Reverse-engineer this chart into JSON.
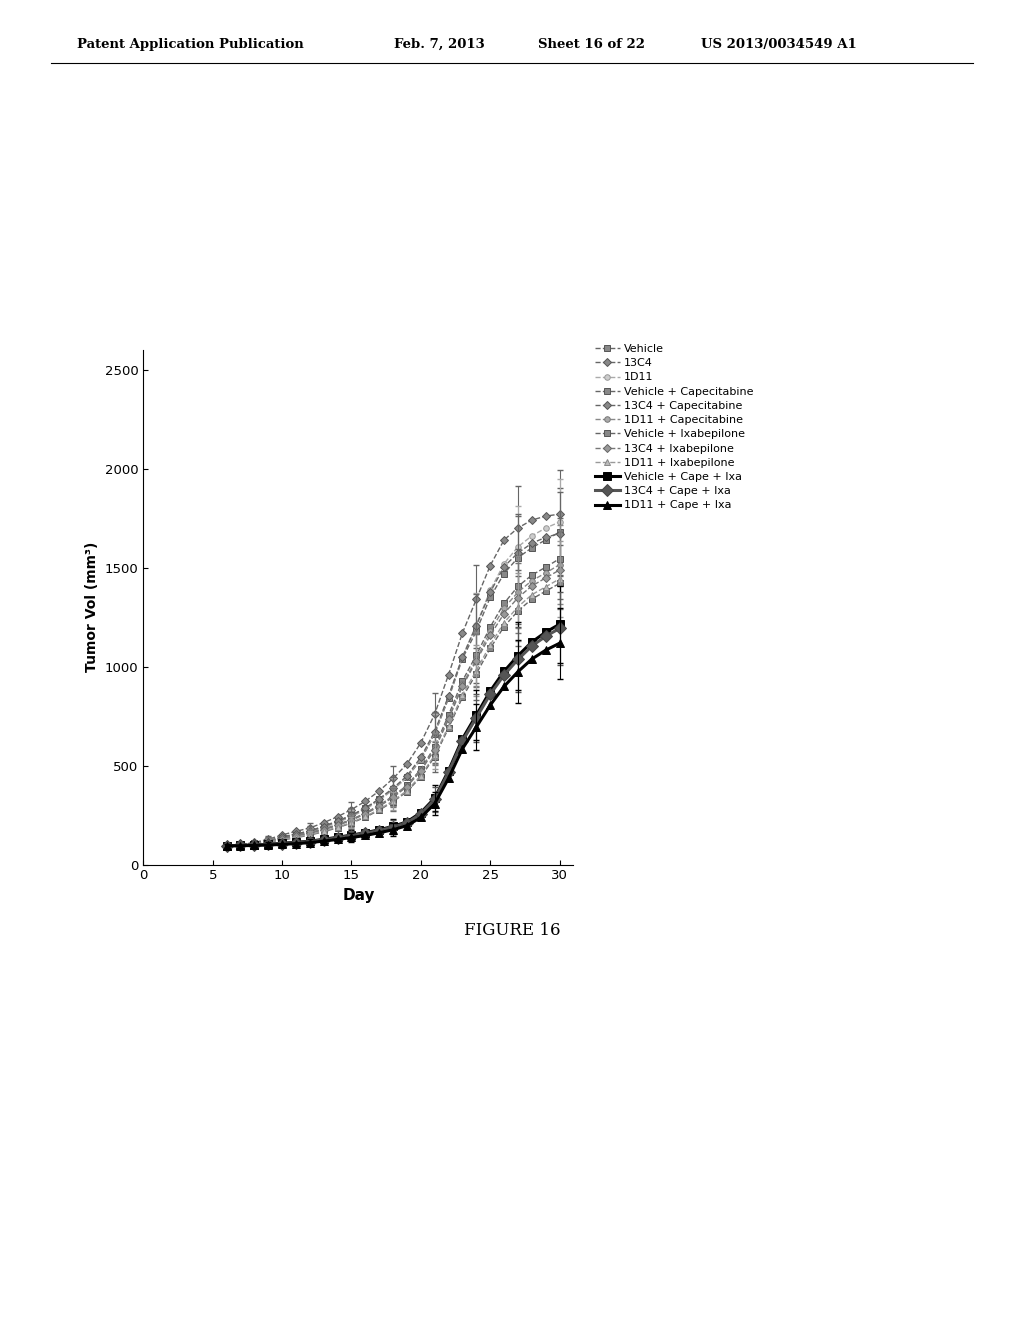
{
  "title": "FIGURE 16",
  "xlabel": "Day",
  "ylabel": "Tumor Vol (mm³)",
  "xlim": [
    0,
    31
  ],
  "ylim": [
    0,
    2600
  ],
  "xticks": [
    0,
    5,
    10,
    15,
    20,
    25,
    30
  ],
  "yticks": [
    0,
    500,
    1000,
    1500,
    2000,
    2500
  ],
  "background_color": "#ffffff",
  "header_left": "Patent Application Publication",
  "header_mid1": "Feb. 7, 2013",
  "header_mid2": "Sheet 16 of 22",
  "header_right": "US 2013/0034549 A1",
  "series": [
    {
      "label": "Vehicle",
      "color": "#666666",
      "linestyle": "--",
      "linewidth": 1.0,
      "marker": "s",
      "markersize": 4,
      "markerfacecolor": "#999999",
      "days": [
        6,
        7,
        8,
        9,
        10,
        11,
        12,
        13,
        14,
        15,
        16,
        17,
        18,
        19,
        20,
        21,
        22,
        23,
        24,
        25,
        26,
        27,
        28,
        29,
        30
      ],
      "values": [
        95,
        100,
        108,
        120,
        140,
        155,
        170,
        195,
        220,
        250,
        285,
        330,
        380,
        440,
        530,
        660,
        840,
        1040,
        1180,
        1350,
        1470,
        1550,
        1600,
        1640,
        1680
      ],
      "errors": [
        10,
        12,
        14,
        16,
        18,
        20,
        22,
        25,
        30,
        35,
        40,
        48,
        55,
        65,
        80,
        95,
        120,
        145,
        165,
        185,
        200,
        210,
        215,
        218,
        222
      ]
    },
    {
      "label": "13C4",
      "color": "#666666",
      "linestyle": "--",
      "linewidth": 1.0,
      "marker": "D",
      "markersize": 4,
      "markerfacecolor": "#999999",
      "days": [
        6,
        7,
        8,
        9,
        10,
        11,
        12,
        13,
        14,
        15,
        16,
        17,
        18,
        19,
        20,
        21,
        22,
        23,
        24,
        25,
        26,
        27,
        28,
        29,
        30
      ],
      "values": [
        95,
        102,
        112,
        128,
        150,
        168,
        185,
        212,
        242,
        278,
        320,
        372,
        435,
        508,
        615,
        760,
        960,
        1170,
        1340,
        1510,
        1640,
        1700,
        1740,
        1760,
        1770
      ],
      "errors": [
        10,
        12,
        14,
        17,
        20,
        22,
        25,
        29,
        34,
        40,
        47,
        55,
        63,
        73,
        88,
        108,
        132,
        155,
        175,
        193,
        206,
        212,
        216,
        219,
        221
      ]
    },
    {
      "label": "1D11",
      "color": "#aaaaaa",
      "linestyle": "--",
      "linewidth": 1.0,
      "marker": "o",
      "markersize": 4,
      "markerfacecolor": "#cccccc",
      "days": [
        6,
        7,
        8,
        9,
        10,
        11,
        12,
        13,
        14,
        15,
        16,
        17,
        18,
        19,
        20,
        21,
        22,
        23,
        24,
        25,
        26,
        27,
        28,
        29,
        30
      ],
      "values": [
        95,
        100,
        108,
        118,
        135,
        150,
        165,
        188,
        212,
        242,
        278,
        325,
        378,
        440,
        535,
        665,
        848,
        1050,
        1210,
        1385,
        1520,
        1605,
        1660,
        1700,
        1730
      ],
      "errors": [
        10,
        12,
        14,
        16,
        18,
        20,
        22,
        25,
        30,
        36,
        42,
        50,
        57,
        66,
        80,
        96,
        118,
        142,
        161,
        180,
        195,
        204,
        209,
        213,
        215
      ]
    },
    {
      "label": "Vehicle + Capecitabine",
      "color": "#666666",
      "linestyle": "--",
      "linewidth": 1.0,
      "marker": "s",
      "markersize": 4,
      "markerfacecolor": "#999999",
      "days": [
        6,
        7,
        8,
        9,
        10,
        11,
        12,
        13,
        14,
        15,
        16,
        17,
        18,
        19,
        20,
        21,
        22,
        23,
        24,
        25,
        26,
        27,
        28,
        29,
        30
      ],
      "values": [
        95,
        100,
        107,
        118,
        133,
        147,
        161,
        180,
        202,
        228,
        260,
        300,
        346,
        400,
        482,
        595,
        755,
        928,
        1058,
        1200,
        1320,
        1405,
        1462,
        1502,
        1545
      ],
      "errors": [
        10,
        12,
        14,
        16,
        17,
        19,
        21,
        24,
        28,
        32,
        37,
        43,
        49,
        57,
        68,
        82,
        102,
        124,
        143,
        162,
        177,
        188,
        196,
        201,
        206
      ]
    },
    {
      "label": "13C4 + Capecitabine",
      "color": "#666666",
      "linestyle": "--",
      "linewidth": 1.0,
      "marker": "D",
      "markersize": 4,
      "markerfacecolor": "#999999",
      "days": [
        6,
        7,
        8,
        9,
        10,
        11,
        12,
        13,
        14,
        15,
        16,
        17,
        18,
        19,
        20,
        21,
        22,
        23,
        24,
        25,
        26,
        27,
        28,
        29,
        30
      ],
      "values": [
        95,
        100,
        109,
        122,
        138,
        154,
        169,
        192,
        218,
        248,
        285,
        332,
        386,
        448,
        542,
        672,
        852,
        1048,
        1207,
        1375,
        1505,
        1574,
        1623,
        1653,
        1672
      ],
      "errors": [
        10,
        12,
        14,
        16,
        18,
        21,
        24,
        27,
        32,
        37,
        43,
        51,
        58,
        67,
        79,
        97,
        119,
        141,
        160,
        178,
        192,
        199,
        204,
        207,
        209
      ]
    },
    {
      "label": "1D11 + Capecitabine",
      "color": "#888888",
      "linestyle": "--",
      "linewidth": 1.0,
      "marker": "o",
      "markersize": 4,
      "markerfacecolor": "#bbbbbb",
      "days": [
        6,
        7,
        8,
        9,
        10,
        11,
        12,
        13,
        14,
        15,
        16,
        17,
        18,
        19,
        20,
        21,
        22,
        23,
        24,
        25,
        26,
        27,
        28,
        29,
        30
      ],
      "values": [
        95,
        100,
        107,
        117,
        131,
        145,
        159,
        178,
        200,
        226,
        258,
        297,
        343,
        397,
        478,
        588,
        742,
        910,
        1038,
        1178,
        1296,
        1376,
        1434,
        1473,
        1515
      ],
      "errors": [
        10,
        12,
        13,
        15,
        17,
        19,
        21,
        23,
        27,
        31,
        36,
        42,
        48,
        55,
        65,
        79,
        98,
        119,
        138,
        157,
        172,
        183,
        190,
        195,
        200
      ]
    },
    {
      "label": "Vehicle + Ixabepilone",
      "color": "#666666",
      "linestyle": "--",
      "linewidth": 1.0,
      "marker": "s",
      "markersize": 4,
      "markerfacecolor": "#999999",
      "days": [
        6,
        7,
        8,
        9,
        10,
        11,
        12,
        13,
        14,
        15,
        16,
        17,
        18,
        19,
        20,
        21,
        22,
        23,
        24,
        25,
        26,
        27,
        28,
        29,
        30
      ],
      "values": [
        95,
        99,
        105,
        112,
        124,
        136,
        149,
        166,
        186,
        210,
        239,
        275,
        318,
        368,
        443,
        545,
        690,
        845,
        964,
        1092,
        1202,
        1281,
        1341,
        1381,
        1420
      ],
      "errors": [
        10,
        11,
        13,
        15,
        16,
        18,
        20,
        23,
        27,
        31,
        36,
        41,
        46,
        53,
        62,
        75,
        93,
        112,
        131,
        150,
        165,
        176,
        184,
        189,
        194
      ]
    },
    {
      "label": "13C4 + Ixabepilone",
      "color": "#777777",
      "linestyle": "--",
      "linewidth": 1.0,
      "marker": "D",
      "markersize": 4,
      "markerfacecolor": "#aaaaaa",
      "days": [
        6,
        7,
        8,
        9,
        10,
        11,
        12,
        13,
        14,
        15,
        16,
        17,
        18,
        19,
        20,
        21,
        22,
        23,
        24,
        25,
        26,
        27,
        28,
        29,
        30
      ],
      "values": [
        95,
        99,
        106,
        117,
        131,
        144,
        158,
        176,
        198,
        224,
        256,
        294,
        340,
        394,
        473,
        581,
        735,
        900,
        1029,
        1158,
        1268,
        1348,
        1407,
        1448,
        1488
      ],
      "errors": [
        10,
        11,
        13,
        15,
        17,
        19,
        21,
        24,
        28,
        32,
        37,
        42,
        48,
        55,
        64,
        77,
        95,
        116,
        134,
        153,
        167,
        177,
        185,
        191,
        196
      ]
    },
    {
      "label": "1D11 + Ixabepilone",
      "color": "#aaaaaa",
      "linestyle": "--",
      "linewidth": 1.0,
      "marker": "^",
      "markersize": 4,
      "markerfacecolor": "#cccccc",
      "days": [
        6,
        7,
        8,
        9,
        10,
        11,
        12,
        13,
        14,
        15,
        16,
        17,
        18,
        19,
        20,
        21,
        22,
        23,
        24,
        25,
        26,
        27,
        28,
        29,
        30
      ],
      "values": [
        95,
        99,
        105,
        113,
        126,
        139,
        151,
        169,
        189,
        213,
        243,
        279,
        322,
        374,
        450,
        553,
        700,
        858,
        980,
        1110,
        1222,
        1302,
        1363,
        1403,
        1443
      ],
      "errors": [
        10,
        11,
        13,
        14,
        16,
        17,
        20,
        22,
        26,
        29,
        34,
        39,
        44,
        51,
        60,
        72,
        90,
        110,
        128,
        147,
        161,
        172,
        180,
        186,
        191
      ]
    },
    {
      "label": "Vehicle + Cape + Ixa",
      "color": "#000000",
      "linestyle": "-",
      "linewidth": 2.2,
      "marker": "s",
      "markersize": 6,
      "markerfacecolor": "#000000",
      "days": [
        6,
        7,
        8,
        9,
        10,
        11,
        12,
        13,
        14,
        15,
        16,
        17,
        18,
        19,
        20,
        21,
        22,
        23,
        24,
        25,
        26,
        27,
        28,
        29,
        30
      ],
      "values": [
        95,
        97,
        99,
        103,
        108,
        113,
        118,
        128,
        138,
        149,
        161,
        176,
        193,
        216,
        262,
        336,
        475,
        635,
        755,
        876,
        976,
        1055,
        1124,
        1174,
        1214
      ],
      "errors": [
        10,
        11,
        12,
        13,
        14,
        15,
        17,
        19,
        22,
        25,
        28,
        32,
        37,
        42,
        51,
        65,
        86,
        108,
        127,
        146,
        160,
        172,
        181,
        188,
        194
      ]
    },
    {
      "label": "13C4 + Cape + Ixa",
      "color": "#555555",
      "linestyle": "-",
      "linewidth": 2.2,
      "marker": "D",
      "markersize": 6,
      "markerfacecolor": "#555555",
      "days": [
        6,
        7,
        8,
        9,
        10,
        11,
        12,
        13,
        14,
        15,
        16,
        17,
        18,
        19,
        20,
        21,
        22,
        23,
        24,
        25,
        26,
        27,
        28,
        29,
        30
      ],
      "values": [
        95,
        97,
        99,
        102,
        106,
        111,
        116,
        125,
        135,
        146,
        158,
        172,
        189,
        211,
        256,
        329,
        466,
        624,
        742,
        860,
        958,
        1036,
        1104,
        1153,
        1193
      ],
      "errors": [
        10,
        11,
        12,
        13,
        14,
        15,
        17,
        19,
        21,
        24,
        27,
        31,
        35,
        41,
        49,
        62,
        82,
        103,
        122,
        140,
        154,
        165,
        173,
        180,
        186
      ]
    },
    {
      "label": "1D11 + Cape + Ixa",
      "color": "#000000",
      "linestyle": "-",
      "linewidth": 2.2,
      "marker": "^",
      "markersize": 6,
      "markerfacecolor": "#000000",
      "days": [
        6,
        7,
        8,
        9,
        10,
        11,
        12,
        13,
        14,
        15,
        16,
        17,
        18,
        19,
        20,
        21,
        22,
        23,
        24,
        25,
        26,
        27,
        28,
        29,
        30
      ],
      "values": [
        95,
        95,
        97,
        99,
        102,
        106,
        111,
        119,
        127,
        137,
        147,
        161,
        176,
        197,
        238,
        308,
        436,
        585,
        695,
        805,
        900,
        974,
        1038,
        1083,
        1118
      ],
      "errors": [
        10,
        10,
        12,
        13,
        14,
        15,
        17,
        19,
        21,
        23,
        26,
        30,
        34,
        39,
        47,
        59,
        78,
        99,
        117,
        135,
        148,
        159,
        167,
        174,
        179
      ]
    }
  ]
}
